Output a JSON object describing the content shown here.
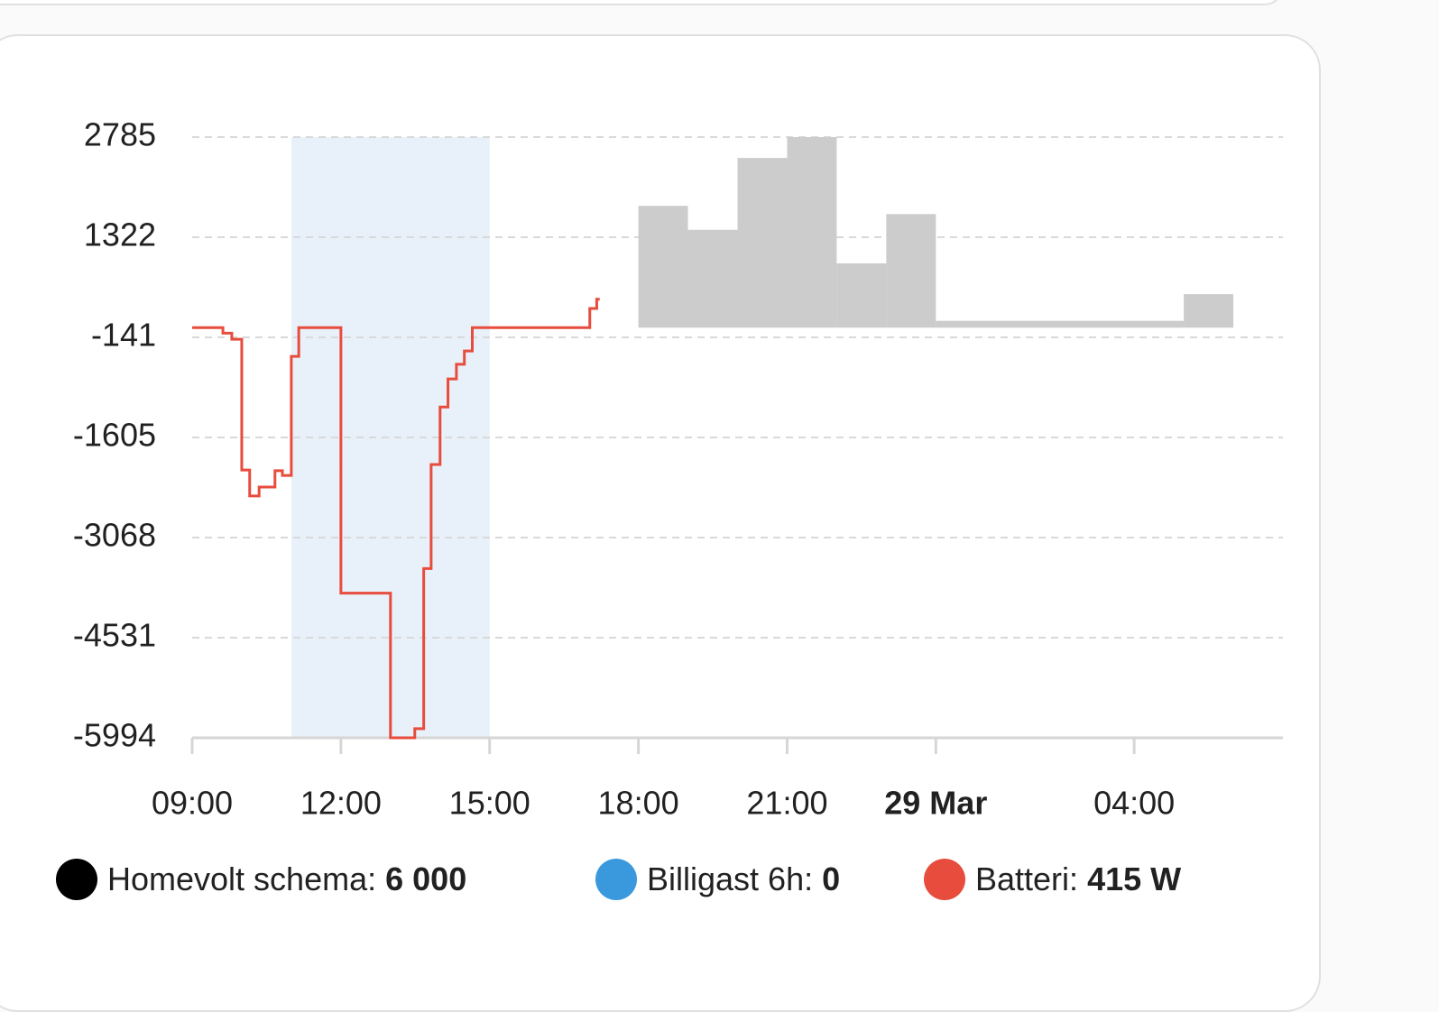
{
  "chart_data": {
    "type": "line",
    "xlim": [
      9,
      31
    ],
    "xticks": [
      {
        "value": 9,
        "label": "09:00"
      },
      {
        "value": 12,
        "label": "12:00"
      },
      {
        "value": 15,
        "label": "15:00"
      },
      {
        "value": 18,
        "label": "18:00"
      },
      {
        "value": 21,
        "label": "21:00"
      },
      {
        "value": 24,
        "label": "29 Mar",
        "bold": true
      },
      {
        "value": 28,
        "label": "04:00"
      }
    ],
    "ylim": [
      -5994,
      2785
    ],
    "yticks": [
      2785,
      1322,
      -141,
      -1605,
      -3068,
      -4531,
      -5994
    ],
    "grid": true,
    "series": [
      {
        "name": "Homevolt schema",
        "color": "#000000",
        "fill": "#cccccc",
        "bins": [
          18,
          19,
          20,
          21,
          22,
          23,
          24,
          29,
          30
        ],
        "values": [
          1780,
          1430,
          2480,
          2785,
          940,
          1660,
          100,
          490
        ],
        "legend_value": {
          "value": 6000,
          "label": "6 000"
        }
      },
      {
        "name": "Billigast 6h",
        "color": "#3a99dc",
        "fill": "#e8f1fa",
        "span": [
          11,
          15
        ],
        "legend_value": 0
      },
      {
        "name": "Batteri",
        "color": "#e74c3c",
        "x": [
          9,
          9.62,
          9.8,
          10,
          10.16,
          10.35,
          10.67,
          10.82,
          11,
          11.15,
          12,
          13,
          13.49,
          13.67,
          13.82,
          14,
          14.16,
          14.33,
          14.49,
          14.65,
          17.02,
          17.16,
          17.22
        ],
        "values": [
          0,
          -80,
          -170,
          -2080,
          -2460,
          -2330,
          -2090,
          -2160,
          -420,
          0,
          -3880,
          -5994,
          -5860,
          -3520,
          -2000,
          -1160,
          -750,
          -535,
          -340,
          0,
          280,
          415,
          415
        ],
        "legend_value": {
          "value": 415,
          "label": "415 W"
        }
      }
    ]
  }
}
